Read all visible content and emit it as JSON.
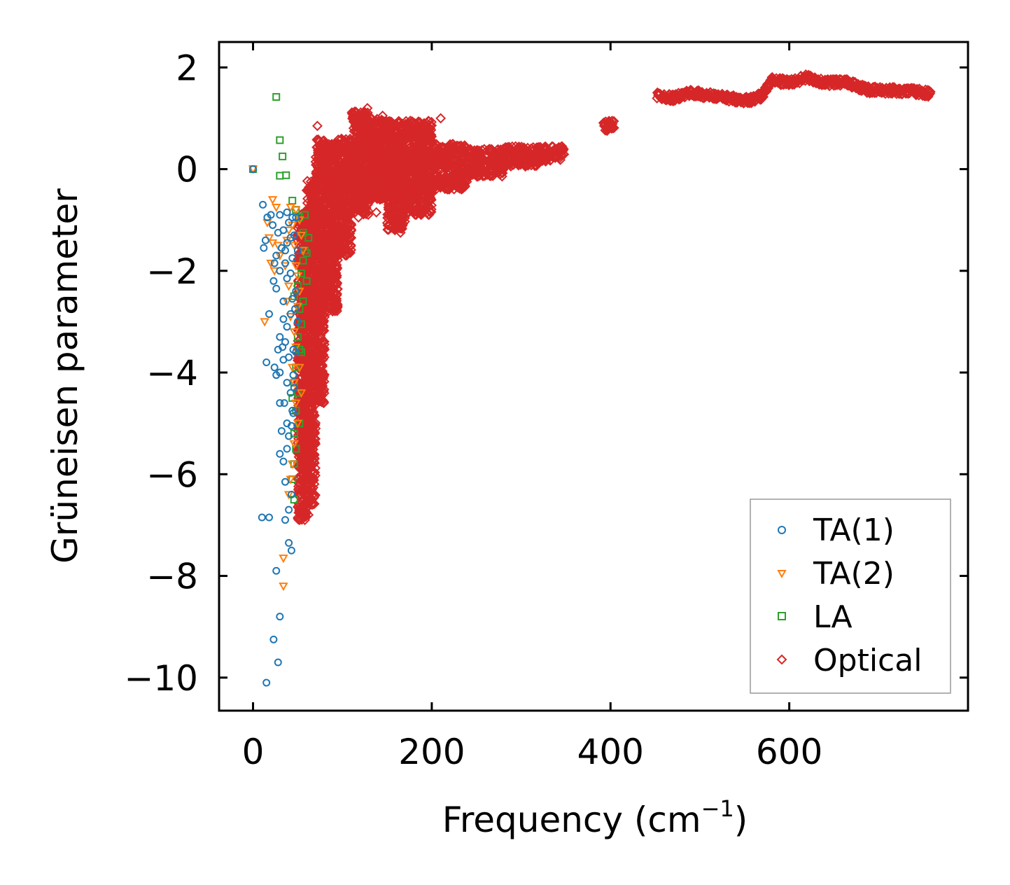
{
  "chart_data": {
    "type": "scatter",
    "title": "",
    "xlabel": "Frequency (cm",
    "xlabel_sup": "−1",
    "xlabel_close": ")",
    "ylabel": "Grüneisen parameter",
    "xlim": [
      -38,
      800
    ],
    "ylim": [
      -10.65,
      2.5
    ],
    "xticks": [
      0,
      200,
      400,
      600
    ],
    "xtick_labels": [
      "0",
      "200",
      "400",
      "600"
    ],
    "yticks": [
      2,
      0,
      -2,
      -4,
      -6,
      -8,
      -10
    ],
    "ytick_labels": [
      "2",
      "0",
      "−2",
      "−4",
      "−6",
      "−8",
      "−10"
    ],
    "grid": false,
    "legend_position": "bottom-right",
    "series": [
      {
        "name": "TA(1)",
        "marker": "circle",
        "color": "#1f77b4",
        "points": [
          [
            0,
            0
          ],
          [
            11,
            -0.7
          ],
          [
            12,
            -1.55
          ],
          [
            14,
            -1.4
          ],
          [
            16,
            -0.95
          ],
          [
            18,
            -2.85
          ],
          [
            15,
            -3.8
          ],
          [
            10,
            -6.85
          ],
          [
            18,
            -6.85
          ],
          [
            15,
            -10.1
          ],
          [
            23,
            -9.25
          ],
          [
            28,
            -9.7
          ],
          [
            30,
            -8.8
          ],
          [
            26,
            -7.9
          ],
          [
            40,
            -7.35
          ],
          [
            43,
            -7.5
          ],
          [
            36,
            -6.9
          ],
          [
            40,
            -6.7
          ],
          [
            43,
            -6.4
          ],
          [
            36,
            -6.15
          ],
          [
            30,
            -5.6
          ],
          [
            34,
            -5.75
          ],
          [
            38,
            -5.5
          ],
          [
            40,
            -5.25
          ],
          [
            43,
            -5.05
          ],
          [
            38,
            -5.0
          ],
          [
            32,
            -5.15
          ],
          [
            45,
            -4.8
          ],
          [
            35,
            -4.6
          ],
          [
            30,
            -4.6
          ],
          [
            42,
            -4.4
          ],
          [
            38,
            -4.2
          ],
          [
            45,
            -4.05
          ],
          [
            26,
            -4.05
          ],
          [
            30,
            -4.0
          ],
          [
            24,
            -3.9
          ],
          [
            34,
            -3.75
          ],
          [
            40,
            -3.7
          ],
          [
            45,
            -3.55
          ],
          [
            33,
            -3.5
          ],
          [
            28,
            -3.55
          ],
          [
            36,
            -3.4
          ],
          [
            30,
            -3.3
          ],
          [
            38,
            -3.1
          ],
          [
            34,
            -2.95
          ],
          [
            42,
            -2.85
          ],
          [
            47,
            -2.75
          ],
          [
            34,
            -2.6
          ],
          [
            44,
            -2.55
          ],
          [
            23,
            -2.2
          ],
          [
            26,
            -2.35
          ],
          [
            38,
            -2.15
          ],
          [
            42,
            -2.05
          ],
          [
            30,
            -2.0
          ],
          [
            36,
            -1.85
          ],
          [
            44,
            -1.75
          ],
          [
            24,
            -1.85
          ],
          [
            26,
            -1.7
          ],
          [
            32,
            -1.55
          ],
          [
            38,
            -1.45
          ],
          [
            42,
            -1.35
          ],
          [
            46,
            -1.3
          ],
          [
            34,
            -1.2
          ],
          [
            28,
            -1.25
          ],
          [
            40,
            -1.05
          ],
          [
            44,
            -0.95
          ],
          [
            20,
            -0.9
          ],
          [
            48,
            -0.95
          ],
          [
            38,
            -0.85
          ],
          [
            30,
            -0.9
          ],
          [
            50,
            -1.6
          ],
          [
            48,
            -2.4
          ],
          [
            50,
            -3.0
          ],
          [
            48,
            -3.6
          ],
          [
            46,
            -4.3
          ],
          [
            44,
            -4.75
          ],
          [
            22,
            -1.1
          ],
          [
            36,
            -1.6
          ]
        ]
      },
      {
        "name": "TA(2)",
        "marker": "triangle-down",
        "color": "#ff7f0e",
        "points": [
          [
            0,
            0
          ],
          [
            22,
            -0.6
          ],
          [
            26,
            -0.75
          ],
          [
            16,
            -1.05
          ],
          [
            18,
            -1.35
          ],
          [
            22,
            -1.45
          ],
          [
            28,
            -1.5
          ],
          [
            20,
            -1.85
          ],
          [
            24,
            -2.0
          ],
          [
            13,
            -3.0
          ],
          [
            34,
            -7.65
          ],
          [
            34,
            -8.2
          ],
          [
            40,
            -1.2
          ],
          [
            44,
            -1.1
          ],
          [
            46,
            -1.5
          ],
          [
            48,
            -1.9
          ],
          [
            50,
            -2.1
          ],
          [
            38,
            -2.6
          ],
          [
            42,
            -2.9
          ],
          [
            46,
            -3.2
          ],
          [
            48,
            -3.5
          ],
          [
            44,
            -3.9
          ],
          [
            46,
            -4.2
          ],
          [
            48,
            -4.6
          ],
          [
            50,
            -5.0
          ],
          [
            46,
            -5.4
          ],
          [
            44,
            -5.8
          ],
          [
            42,
            -6.1
          ],
          [
            40,
            -6.4
          ],
          [
            52,
            -1.0
          ],
          [
            54,
            -1.3
          ],
          [
            56,
            -1.6
          ],
          [
            52,
            -2.4
          ],
          [
            50,
            -2.7
          ],
          [
            36,
            -1.9
          ],
          [
            30,
            -1.7
          ],
          [
            42,
            -0.75
          ],
          [
            48,
            -0.8
          ],
          [
            38,
            -1.4
          ],
          [
            40,
            -2.3
          ],
          [
            52,
            -3.9
          ],
          [
            54,
            -4.4
          ]
        ]
      },
      {
        "name": "LA",
        "marker": "square",
        "color": "#2ca02c",
        "points": [
          [
            0,
            0
          ],
          [
            26,
            1.42
          ],
          [
            30,
            0.57
          ],
          [
            33,
            0.25
          ],
          [
            37,
            -0.12
          ],
          [
            30,
            -0.13
          ],
          [
            44,
            -0.62
          ],
          [
            48,
            -0.8
          ],
          [
            52,
            -0.95
          ],
          [
            56,
            -1.25
          ],
          [
            58,
            -1.6
          ],
          [
            60,
            -1.65
          ],
          [
            56,
            -1.8
          ],
          [
            54,
            -2.05
          ],
          [
            50,
            -2.3
          ],
          [
            46,
            -2.5
          ],
          [
            52,
            -2.75
          ],
          [
            54,
            -3.05
          ],
          [
            50,
            -3.3
          ],
          [
            52,
            -3.55
          ],
          [
            48,
            -3.9
          ],
          [
            46,
            -4.2
          ],
          [
            44,
            -4.5
          ],
          [
            48,
            -4.75
          ],
          [
            46,
            -5.2
          ],
          [
            48,
            -5.5
          ],
          [
            46,
            -5.8
          ],
          [
            44,
            -6.1
          ],
          [
            46,
            -6.5
          ],
          [
            58,
            -0.9
          ],
          [
            62,
            -1.35
          ],
          [
            60,
            -2.2
          ],
          [
            56,
            -2.6
          ],
          [
            54,
            -3.6
          ],
          [
            50,
            -4.4
          ],
          [
            52,
            -5.0
          ]
        ]
      },
      {
        "name": "Optical",
        "marker": "diamond",
        "color": "#d62728",
        "points": []
      }
    ],
    "optical_bands": [
      {
        "x0": 50,
        "x1": 60,
        "y_lo": -6.9,
        "y_hi": -0.8
      },
      {
        "x0": 60,
        "x1": 70,
        "y_lo": -6.6,
        "y_hi": -0.2
      },
      {
        "x0": 70,
        "x1": 80,
        "y_lo": -4.6,
        "y_hi": 0.6
      },
      {
        "x0": 80,
        "x1": 95,
        "y_lo": -2.8,
        "y_hi": 0.5
      },
      {
        "x0": 95,
        "x1": 110,
        "y_lo": -1.7,
        "y_hi": 0.6
      },
      {
        "x0": 110,
        "x1": 130,
        "y_lo": -0.9,
        "y_hi": 1.15
      },
      {
        "x0": 130,
        "x1": 150,
        "y_lo": -0.6,
        "y_hi": 1.0
      },
      {
        "x0": 150,
        "x1": 170,
        "y_lo": -1.2,
        "y_hi": 0.95
      },
      {
        "x0": 170,
        "x1": 200,
        "y_lo": -0.9,
        "y_hi": 0.95
      },
      {
        "x0": 200,
        "x1": 240,
        "y_lo": -0.4,
        "y_hi": 0.5
      },
      {
        "x0": 240,
        "x1": 280,
        "y_lo": -0.15,
        "y_hi": 0.4
      },
      {
        "x0": 280,
        "x1": 320,
        "y_lo": 0.05,
        "y_hi": 0.45
      },
      {
        "x0": 320,
        "x1": 348,
        "y_lo": 0.15,
        "y_hi": 0.45
      },
      {
        "x0": 392,
        "x1": 404,
        "y_lo": 0.75,
        "y_hi": 0.95
      }
    ],
    "optical_outliers": [
      [
        72,
        0.85
      ],
      [
        78,
        0.55
      ],
      [
        90,
        0.35
      ],
      [
        128,
        1.2
      ],
      [
        145,
        1.05
      ],
      [
        176,
        0.95
      ],
      [
        210,
        1.0
      ],
      [
        190,
        0.8
      ],
      [
        165,
        -1.25
      ],
      [
        138,
        -0.85
      ],
      [
        118,
        -0.95
      ],
      [
        100,
        -1.2
      ],
      [
        95,
        -1.65
      ],
      [
        85,
        -2.4
      ],
      [
        78,
        -3.2
      ],
      [
        74,
        -4.2
      ],
      [
        70,
        -5.1
      ],
      [
        66,
        -5.8
      ],
      [
        64,
        -6.2
      ],
      [
        62,
        -6.8
      ],
      [
        58,
        -6.9
      ],
      [
        52,
        -6.9
      ],
      [
        66,
        -6.6
      ]
    ],
    "optical_high_band": [
      [
        452,
        1.45
      ],
      [
        470,
        1.4
      ],
      [
        490,
        1.5
      ],
      [
        510,
        1.45
      ],
      [
        530,
        1.4
      ],
      [
        555,
        1.35
      ],
      [
        570,
        1.45
      ],
      [
        580,
        1.75
      ],
      [
        600,
        1.7
      ],
      [
        620,
        1.8
      ],
      [
        640,
        1.7
      ],
      [
        665,
        1.7
      ],
      [
        690,
        1.55
      ],
      [
        720,
        1.55
      ],
      [
        745,
        1.52
      ],
      [
        758,
        1.48
      ]
    ]
  }
}
